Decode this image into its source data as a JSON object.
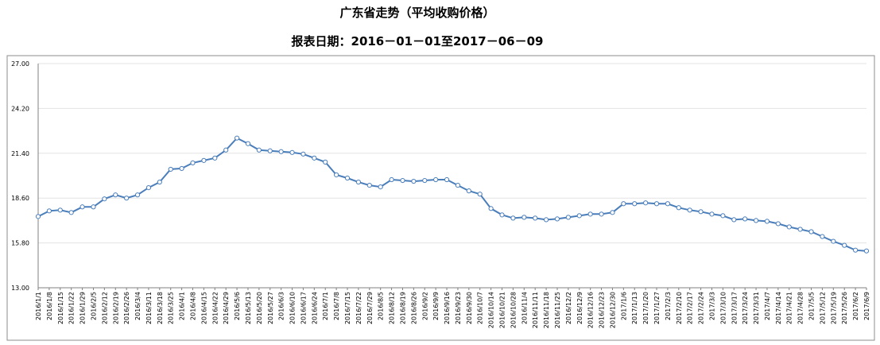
{
  "chart_data": {
    "type": "line",
    "title": "广东省走势（平均收购价格）",
    "subtitle": "报表日期：2016－01－01至2017－06－09",
    "xlabel": "",
    "ylabel": "",
    "ylim": [
      13.0,
      27.0
    ],
    "yticks": [
      "13.00",
      "15.80",
      "18.60",
      "21.40",
      "24.20",
      "27.00"
    ],
    "grid": true,
    "line_color": "#4a7ebb",
    "x": [
      "2016/1/1",
      "2016/1/8",
      "2016/1/15",
      "2016/1/22",
      "2016/1/29",
      "2016/2/5",
      "2016/2/12",
      "2016/2/19",
      "2016/2/26",
      "2016/3/4",
      "2016/3/11",
      "2016/3/18",
      "2016/3/25",
      "2016/4/1",
      "2016/4/8",
      "2016/4/15",
      "2016/4/22",
      "2016/4/29",
      "2016/5/6",
      "2016/5/13",
      "2016/5/20",
      "2016/5/27",
      "2016/6/3",
      "2016/6/10",
      "2016/6/17",
      "2016/6/24",
      "2016/7/1",
      "2016/7/8",
      "2016/7/15",
      "2016/7/22",
      "2016/7/29",
      "2016/8/5",
      "2016/8/12",
      "2016/8/19",
      "2016/8/26",
      "2016/9/2",
      "2016/9/9",
      "2016/9/16",
      "2016/9/23",
      "2016/9/30",
      "2016/10/7",
      "2016/10/14",
      "2016/10/21",
      "2016/10/28",
      "2016/11/4",
      "2016/11/11",
      "2016/11/18",
      "2016/11/25",
      "2016/12/2",
      "2016/12/9",
      "2016/12/16",
      "2016/12/23",
      "2016/12/30",
      "2017/1/6",
      "2017/1/13",
      "2017/1/20",
      "2017/1/27",
      "2017/2/3",
      "2017/2/10",
      "2017/2/17",
      "2017/2/24",
      "2017/3/3",
      "2017/3/10",
      "2017/3/17",
      "2017/3/24",
      "2017/3/31",
      "2017/4/7",
      "2017/4/14",
      "2017/4/21",
      "2017/4/28",
      "2017/5/5",
      "2017/5/12",
      "2017/5/19",
      "2017/5/26",
      "2017/6/2",
      "2017/6/9"
    ],
    "values": [
      17.45,
      17.8,
      17.85,
      17.7,
      18.05,
      18.05,
      18.55,
      18.8,
      18.6,
      18.8,
      19.25,
      19.6,
      20.4,
      20.45,
      20.8,
      20.95,
      21.1,
      21.6,
      22.35,
      22.0,
      21.6,
      21.55,
      21.5,
      21.45,
      21.35,
      21.1,
      20.85,
      20.05,
      19.85,
      19.6,
      19.4,
      19.3,
      19.75,
      19.7,
      19.65,
      19.7,
      19.75,
      19.75,
      19.4,
      19.05,
      18.85,
      17.95,
      17.55,
      17.35,
      17.4,
      17.35,
      17.25,
      17.3,
      17.4,
      17.5,
      17.6,
      17.6,
      17.7,
      18.25,
      18.25,
      18.3,
      18.25,
      18.25,
      18.0,
      17.85,
      17.75,
      17.6,
      17.5,
      17.25,
      17.3,
      17.2,
      17.15,
      17.0,
      16.8,
      16.65,
      16.5,
      16.2,
      15.9,
      15.65,
      15.35,
      15.3
    ]
  }
}
